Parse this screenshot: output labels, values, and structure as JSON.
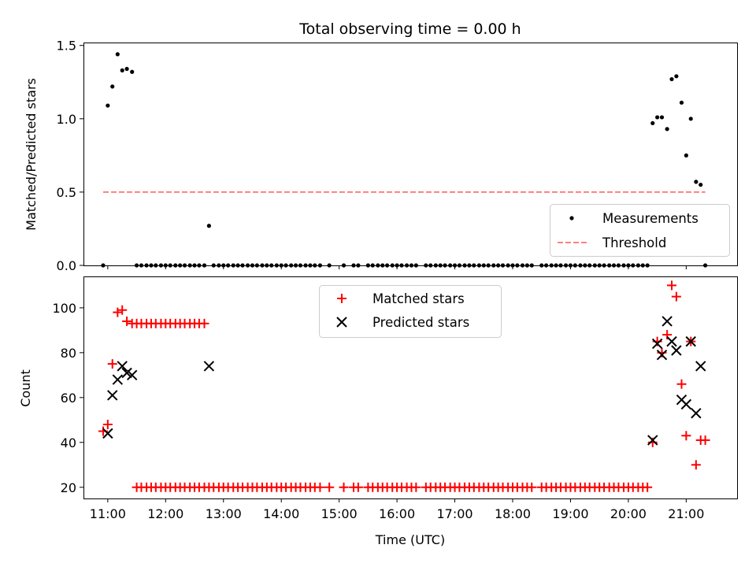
{
  "chart_data": [
    {
      "type": "scatter",
      "title": "Total observing time = 0.00 h",
      "xlabel": "",
      "ylabel": "Matched/Predicted stars",
      "ylim": [
        0,
        1.52
      ],
      "xlim": [
        10.58,
        21.88
      ],
      "yticks": [
        0.0,
        0.5,
        1.0,
        1.5
      ],
      "ytick_labels": [
        "0.0",
        "0.5",
        "1.0",
        "1.5"
      ],
      "xticks": [
        11,
        12,
        13,
        14,
        15,
        16,
        17,
        18,
        19,
        20,
        21
      ],
      "legend_loc": "lower-right",
      "threshold": {
        "name": "Threshold",
        "y": 0.5,
        "x_range": [
          10.92,
          21.33
        ],
        "color": "#ff7f7f",
        "style": "dashed"
      },
      "measurements": {
        "name": "Measurements",
        "color": "#000000",
        "x": [
          10.92,
          11.0,
          11.08,
          11.17,
          11.25,
          11.33,
          11.42,
          12.75,
          20.42,
          20.5,
          20.58,
          20.67,
          20.75,
          20.83,
          20.92,
          21.0,
          21.08,
          21.17,
          21.25,
          21.33
        ],
        "y": [
          0.0,
          1.09,
          1.22,
          1.44,
          1.33,
          1.34,
          1.32,
          0.27,
          0.97,
          1.01,
          1.01,
          0.93,
          1.27,
          1.29,
          1.11,
          0.75,
          1.0,
          0.57,
          0.55,
          0.0
        ]
      },
      "zero_run_x": [
        11.5,
        11.58,
        11.67,
        11.75,
        11.83,
        11.92,
        12.0,
        12.08,
        12.17,
        12.25,
        12.33,
        12.42,
        12.5,
        12.58,
        12.67,
        12.83,
        12.92,
        13.0,
        13.08,
        13.17,
        13.25,
        13.33,
        13.42,
        13.5,
        13.58,
        13.67,
        13.75,
        13.83,
        13.92,
        14.0,
        14.08,
        14.17,
        14.25,
        14.33,
        14.42,
        14.5,
        14.58,
        14.67,
        14.83,
        15.08,
        15.25,
        15.33,
        15.5,
        15.58,
        15.67,
        15.75,
        15.83,
        15.92,
        16.0,
        16.08,
        16.17,
        16.25,
        16.33,
        16.5,
        16.58,
        16.67,
        16.75,
        16.83,
        16.92,
        17.0,
        17.08,
        17.17,
        17.25,
        17.33,
        17.42,
        17.5,
        17.58,
        17.67,
        17.75,
        17.83,
        17.92,
        18.0,
        18.08,
        18.17,
        18.25,
        18.33,
        18.5,
        18.58,
        18.67,
        18.75,
        18.83,
        18.92,
        19.0,
        19.08,
        19.17,
        19.25,
        19.33,
        19.42,
        19.5,
        19.58,
        19.67,
        19.75,
        19.83,
        19.92,
        20.0,
        20.08,
        20.17,
        20.25,
        20.33
      ]
    },
    {
      "type": "scatter",
      "title": "",
      "xlabel": "Time (UTC)",
      "ylabel": "Count",
      "ylim": [
        15,
        114
      ],
      "xlim": [
        10.58,
        21.88
      ],
      "yticks": [
        20,
        40,
        60,
        80,
        100
      ],
      "ytick_labels": [
        "20",
        "40",
        "60",
        "80",
        "100"
      ],
      "xticks": [
        11,
        12,
        13,
        14,
        15,
        16,
        17,
        18,
        19,
        20,
        21
      ],
      "xtick_labels": [
        "11:00",
        "12:00",
        "13:00",
        "14:00",
        "15:00",
        "16:00",
        "17:00",
        "18:00",
        "19:00",
        "20:00",
        "21:00"
      ],
      "legend_loc": "upper-center",
      "matched": {
        "name": "Matched stars",
        "color": "#ff0000",
        "marker": "plus",
        "x": [
          10.92,
          11.0,
          11.08,
          11.17,
          11.25,
          11.33,
          11.42,
          11.5,
          11.58,
          11.67,
          11.75,
          11.83,
          11.92,
          12.0,
          12.08,
          12.17,
          12.25,
          12.33,
          12.42,
          12.5,
          12.58,
          12.67,
          20.42,
          20.5,
          20.58,
          20.67,
          20.75,
          20.83,
          20.92,
          21.0,
          21.08,
          21.17,
          21.25,
          21.33
        ],
        "y": [
          45,
          48,
          75,
          98,
          99,
          94,
          93,
          93,
          93,
          93,
          93,
          93,
          93,
          93,
          93,
          93,
          93,
          93,
          93,
          93,
          93,
          93,
          40,
          85,
          80,
          88,
          110,
          105,
          66,
          43,
          85,
          30,
          41,
          41
        ]
      },
      "predicted": {
        "name": "Predicted stars",
        "color": "#000000",
        "marker": "x",
        "x": [
          11.0,
          11.08,
          11.17,
          11.25,
          11.33,
          11.42,
          12.75,
          20.42,
          20.5,
          20.58,
          20.67,
          20.75,
          20.83,
          20.92,
          21.0,
          21.08,
          21.17,
          21.25
        ],
        "y": [
          44,
          61,
          68,
          74,
          71,
          70,
          74,
          41,
          84,
          79,
          94,
          85,
          81,
          59,
          57,
          85,
          53,
          74
        ]
      },
      "baseline_y": 20
    }
  ]
}
